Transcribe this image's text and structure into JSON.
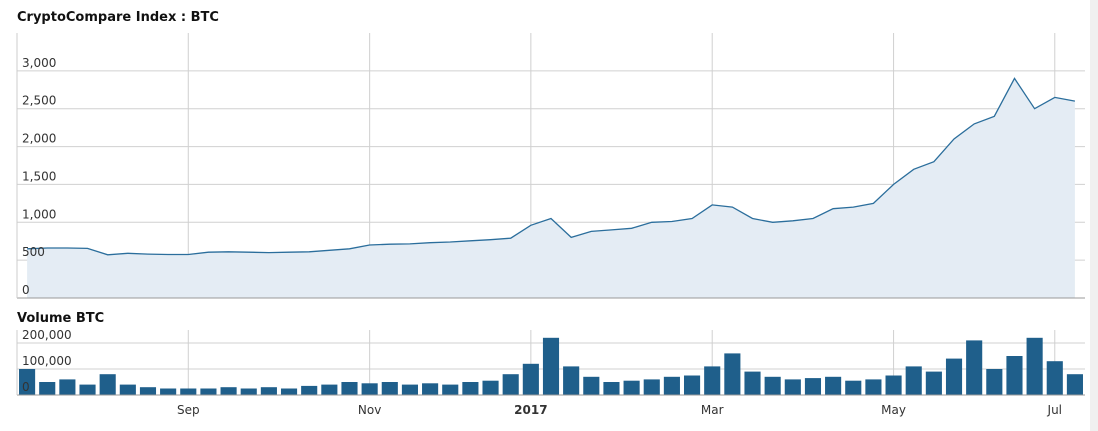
{
  "chart_data": [
    {
      "type": "area",
      "title": "CryptoCompare Index : BTC",
      "color": "#2b6e9c",
      "fill": "#e4ecf4",
      "values": [
        650,
        660,
        660,
        655,
        570,
        590,
        580,
        575,
        575,
        605,
        610,
        605,
        600,
        605,
        610,
        630,
        650,
        700,
        710,
        715,
        730,
        740,
        755,
        770,
        790,
        960,
        1050,
        800,
        880,
        900,
        920,
        1000,
        1010,
        1050,
        1230,
        1200,
        1050,
        1000,
        1020,
        1050,
        1180,
        1200,
        1250,
        1500,
        1700,
        1800,
        2100,
        2300,
        2400,
        2900,
        2500,
        2650,
        2600
      ],
      "ylim": [
        0,
        3500
      ],
      "yticks": [
        0,
        500,
        {
          "value": 1000,
          "label": "1,000"
        },
        {
          "value": 1500,
          "label": "1,500"
        },
        {
          "value": 2000,
          "label": "2,000"
        },
        {
          "value": 2500,
          "label": "2,500"
        },
        {
          "value": 3000,
          "label": "3,000"
        }
      ],
      "grid": true
    },
    {
      "type": "bar",
      "title": "Volume BTC",
      "color": "#1f5f8b",
      "categories": [
        null,
        null,
        null,
        null,
        null,
        null,
        null,
        null,
        "Sep",
        null,
        null,
        null,
        null,
        null,
        null,
        null,
        null,
        "Nov",
        null,
        null,
        null,
        null,
        null,
        null,
        null,
        "2017",
        null,
        null,
        null,
        null,
        null,
        null,
        null,
        null,
        "Mar",
        null,
        null,
        null,
        null,
        null,
        null,
        null,
        null,
        "May",
        null,
        null,
        null,
        null,
        null,
        null,
        null,
        "Jul",
        null
      ],
      "values": [
        100000,
        50000,
        60000,
        40000,
        80000,
        40000,
        30000,
        25000,
        25000,
        25000,
        30000,
        25000,
        30000,
        25000,
        35000,
        40000,
        50000,
        45000,
        50000,
        40000,
        45000,
        40000,
        50000,
        55000,
        80000,
        120000,
        220000,
        110000,
        70000,
        50000,
        55000,
        60000,
        70000,
        75000,
        110000,
        160000,
        90000,
        70000,
        60000,
        65000,
        70000,
        55000,
        60000,
        75000,
        110000,
        90000,
        140000,
        210000,
        100000,
        150000,
        220000,
        130000,
        80000
      ],
      "ylim": [
        0,
        250000
      ],
      "yticks": [
        0,
        {
          "value": 100000,
          "label": "100,000"
        },
        {
          "value": 200000,
          "label": "200,000"
        }
      ],
      "grid": true
    }
  ]
}
